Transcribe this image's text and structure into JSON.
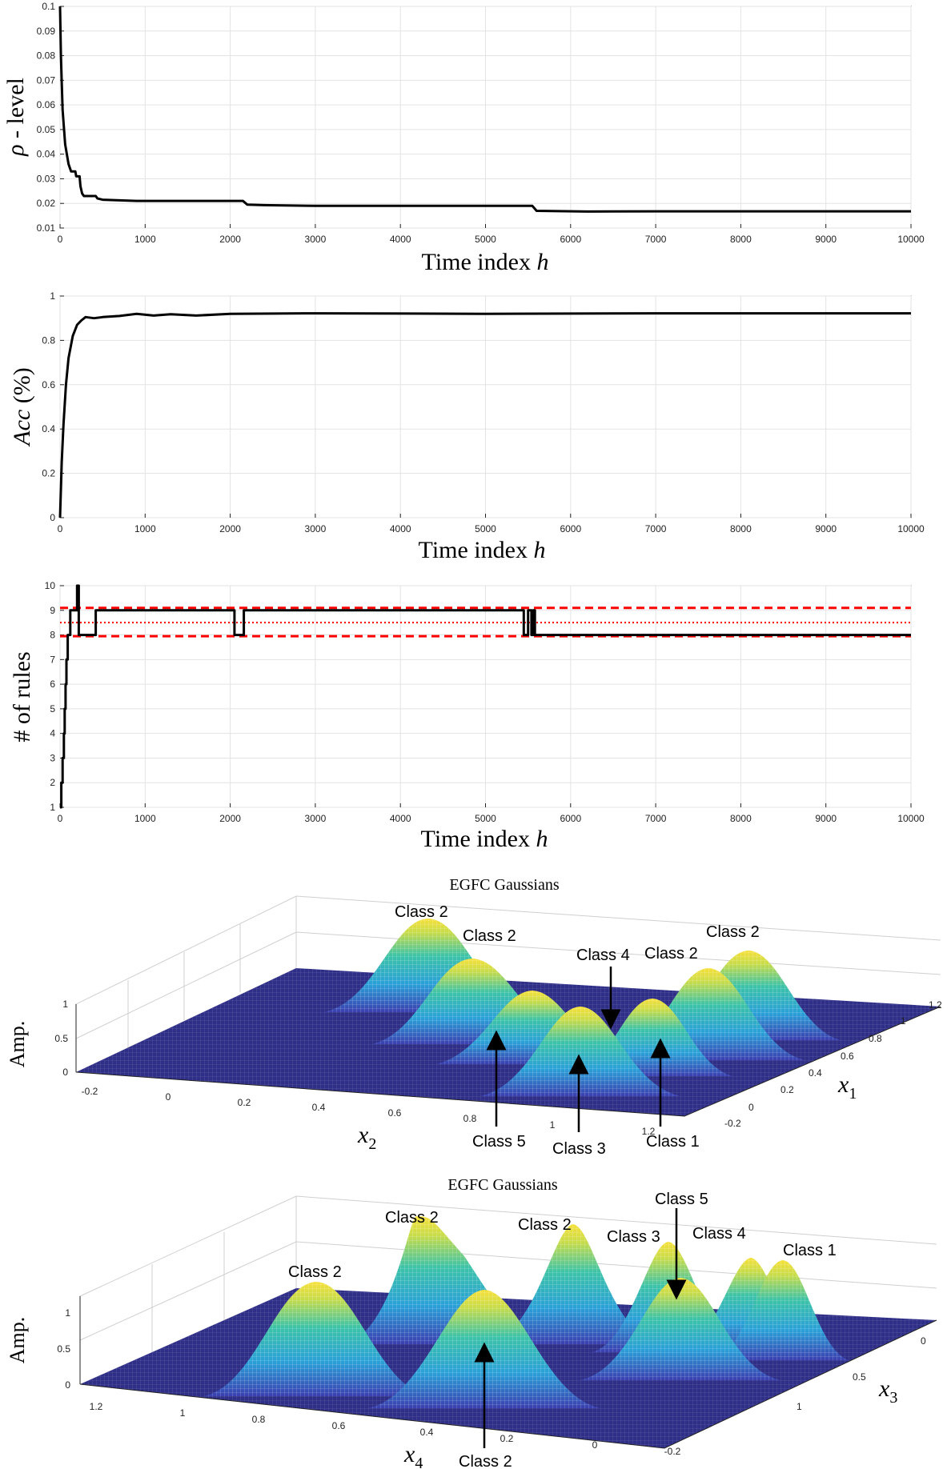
{
  "chart_data": [
    {
      "type": "line",
      "ylabel_symbol": "ρ",
      "ylabel_text": " - level",
      "xlabel_text": "Time index ",
      "xlabel_var": "h",
      "xlim": [
        0,
        10000
      ],
      "ylim": [
        0.01,
        0.1
      ],
      "xticks": [
        "0",
        "1000",
        "2000",
        "3000",
        "4000",
        "5000",
        "6000",
        "7000",
        "8000",
        "9000",
        "10000"
      ],
      "yticks": [
        "0.01",
        "0.02",
        "0.03",
        "0.04",
        "0.05",
        "0.06",
        "0.07",
        "0.08",
        "0.09",
        "0.1"
      ],
      "grid": true,
      "series": [
        {
          "name": "rho",
          "color": "#000000",
          "points": [
            [
              0,
              0.1
            ],
            [
              10,
              0.08
            ],
            [
              30,
              0.058
            ],
            [
              60,
              0.044
            ],
            [
              100,
              0.036
            ],
            [
              130,
              0.033
            ],
            [
              180,
              0.033
            ],
            [
              190,
              0.031
            ],
            [
              230,
              0.031
            ],
            [
              240,
              0.027
            ],
            [
              260,
              0.024
            ],
            [
              280,
              0.023
            ],
            [
              420,
              0.023
            ],
            [
              440,
              0.022
            ],
            [
              500,
              0.0215
            ],
            [
              900,
              0.021
            ],
            [
              2150,
              0.021
            ],
            [
              2200,
              0.0195
            ],
            [
              2400,
              0.0193
            ],
            [
              3000,
              0.019
            ],
            [
              5550,
              0.019
            ],
            [
              5600,
              0.017
            ],
            [
              6200,
              0.0167
            ],
            [
              7000,
              0.0168
            ],
            [
              10000,
              0.0168
            ]
          ]
        }
      ]
    },
    {
      "type": "line",
      "ylabel_var": "Acc",
      "ylabel_text": " (%)",
      "xlabel_text": "Time index ",
      "xlabel_var": "h",
      "xlim": [
        0,
        10000
      ],
      "ylim": [
        0,
        1
      ],
      "xticks": [
        "0",
        "1000",
        "2000",
        "3000",
        "4000",
        "5000",
        "6000",
        "7000",
        "8000",
        "9000",
        "10000"
      ],
      "yticks": [
        "0",
        "0.2",
        "0.4",
        "0.6",
        "0.8",
        "1"
      ],
      "grid": true,
      "series": [
        {
          "name": "accuracy",
          "color": "#000000",
          "points": [
            [
              0,
              0
            ],
            [
              20,
              0.25
            ],
            [
              40,
              0.42
            ],
            [
              70,
              0.6
            ],
            [
              100,
              0.72
            ],
            [
              150,
              0.82
            ],
            [
              200,
              0.87
            ],
            [
              250,
              0.89
            ],
            [
              300,
              0.905
            ],
            [
              400,
              0.9
            ],
            [
              500,
              0.905
            ],
            [
              700,
              0.91
            ],
            [
              900,
              0.92
            ],
            [
              1100,
              0.912
            ],
            [
              1300,
              0.918
            ],
            [
              1600,
              0.912
            ],
            [
              2000,
              0.92
            ],
            [
              3000,
              0.922
            ],
            [
              5000,
              0.92
            ],
            [
              7000,
              0.922
            ],
            [
              10000,
              0.922
            ]
          ]
        }
      ]
    },
    {
      "type": "line",
      "ylabel_text": "# of rules",
      "xlabel_text": "Time index ",
      "xlabel_var": "h",
      "xlim": [
        0,
        10000
      ],
      "ylim": [
        1,
        10
      ],
      "xticks": [
        "0",
        "1000",
        "2000",
        "3000",
        "4000",
        "5000",
        "6000",
        "7000",
        "8000",
        "9000",
        "10000"
      ],
      "yticks": [
        "1",
        "2",
        "3",
        "4",
        "5",
        "6",
        "7",
        "8",
        "9",
        "10"
      ],
      "grid": true,
      "reference_lines": [
        {
          "y": 9.1,
          "style": "dashed",
          "color": "#ff0000"
        },
        {
          "y": 8.5,
          "style": "dotted",
          "color": "#ff0000"
        },
        {
          "y": 7.95,
          "style": "dashed",
          "color": "#ff0000"
        }
      ],
      "series": [
        {
          "name": "rules",
          "color": "#000000",
          "points": [
            [
              0,
              1
            ],
            [
              15,
              1
            ],
            [
              15,
              2
            ],
            [
              30,
              2
            ],
            [
              30,
              3
            ],
            [
              45,
              3
            ],
            [
              45,
              4
            ],
            [
              55,
              4
            ],
            [
              55,
              5
            ],
            [
              65,
              5
            ],
            [
              65,
              6
            ],
            [
              75,
              6
            ],
            [
              75,
              7
            ],
            [
              90,
              7
            ],
            [
              90,
              8
            ],
            [
              120,
              8
            ],
            [
              120,
              9
            ],
            [
              200,
              9
            ],
            [
              200,
              10
            ],
            [
              220,
              10
            ],
            [
              220,
              8
            ],
            [
              420,
              8
            ],
            [
              420,
              9
            ],
            [
              2050,
              9
            ],
            [
              2050,
              8
            ],
            [
              2160,
              8
            ],
            [
              2160,
              9
            ],
            [
              5450,
              9
            ],
            [
              5450,
              8
            ],
            [
              5500,
              8
            ],
            [
              5500,
              9
            ],
            [
              5540,
              9
            ],
            [
              5540,
              8
            ],
            [
              5560,
              8
            ],
            [
              5560,
              9
            ],
            [
              5580,
              9
            ],
            [
              5580,
              8
            ],
            [
              10000,
              8
            ]
          ]
        }
      ]
    },
    {
      "type": "surface",
      "title": "EGFC Gaussians",
      "zlabel": "Amp.",
      "xlabel_var": "x",
      "xlabel_sub": "2",
      "ylabel_var": "x",
      "ylabel_sub": "1",
      "xticks": [
        "-0.2",
        "0",
        "0.2",
        "0.4",
        "0.6",
        "0.8",
        "1",
        "1.2"
      ],
      "yticks": [
        "-0.2",
        "0",
        "0.2",
        "0.4",
        "0.6",
        "0.8",
        "1",
        "1.2"
      ],
      "zticks": [
        "0",
        "0.5",
        "1"
      ],
      "annotations": [
        "Class 2",
        "Class 2",
        "Class 4",
        "Class 2",
        "Class 2",
        "Class 5",
        "Class 3",
        "Class 1"
      ]
    },
    {
      "type": "surface",
      "title": "EGFC Gaussians",
      "zlabel": "Amp.",
      "xlabel_var": "x",
      "xlabel_sub": "4",
      "ylabel_var": "x",
      "ylabel_sub": "3",
      "xticks": [
        "1.2",
        "1",
        "0.8",
        "0.6",
        "0.4",
        "0.2",
        "0",
        "-0.2"
      ],
      "yticks": [
        "0",
        "0.5",
        "1"
      ],
      "zticks": [
        "0",
        "0.5",
        "1"
      ],
      "annotations": [
        "Class 5",
        "Class 2",
        "Class 2",
        "Class 3",
        "Class 4",
        "Class 1",
        "Class 2",
        "Class 2"
      ]
    }
  ]
}
